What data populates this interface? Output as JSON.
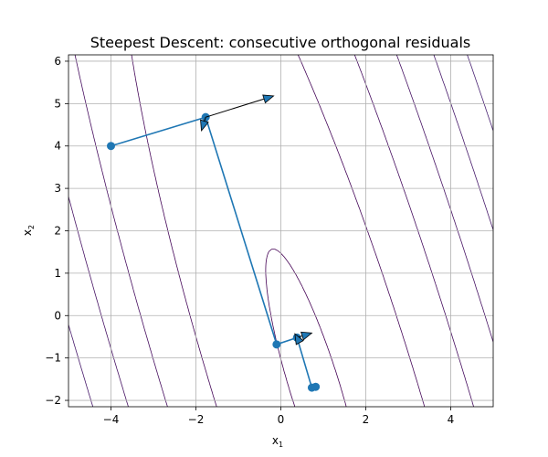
{
  "chart_data": {
    "type": "line",
    "title": "Steepest Descent: consecutive orthogonal residuals",
    "xlabel": {
      "base": "x",
      "sub": "1"
    },
    "ylabel": {
      "base": "x",
      "sub": "2"
    },
    "xlim": [
      -5,
      5
    ],
    "ylim": [
      -2.15,
      6.15
    ],
    "xticks": [
      -4,
      -2,
      0,
      2,
      4
    ],
    "yticks": [
      -2,
      -1,
      0,
      1,
      2,
      3,
      4,
      5,
      6
    ],
    "xtick_labels": [
      "−4",
      "−2",
      "0",
      "2",
      "4"
    ],
    "ytick_labels": [
      "−2",
      "−1",
      "0",
      "1",
      "2",
      "3",
      "4",
      "5",
      "6"
    ],
    "grid": true,
    "path": {
      "color": "#1f77b4",
      "x": [
        -4.0,
        -1.77,
        -0.1,
        0.38,
        0.73,
        0.82
      ],
      "y": [
        4.0,
        4.68,
        -0.68,
        -0.52,
        -1.7,
        -1.68
      ]
    },
    "arrows": [
      {
        "x": -1.77,
        "y": 4.68,
        "dx": 1.6,
        "dy": 0.5
      },
      {
        "x": -1.77,
        "y": 4.68,
        "dx": -0.1,
        "dy": -0.32
      },
      {
        "x": 0.38,
        "y": -0.52,
        "dx": 0.35,
        "dy": 0.11
      },
      {
        "x": 0.38,
        "y": -0.52,
        "dx": -0.05,
        "dy": 0.09
      }
    ],
    "contours": {
      "center": [
        0.8,
        -1.7
      ],
      "a": 4,
      "b": 1.2,
      "c": 0.5,
      "colormap": "viridis",
      "levels": [
        1.5,
        24,
        52,
        82,
        115,
        150,
        188,
        228,
        270,
        315,
        362,
        412,
        464,
        519,
        576,
        636,
        699,
        765,
        834,
        906,
        981,
        1059,
        1140,
        1224,
        1311,
        1401,
        1494,
        1590,
        1689
      ]
    }
  }
}
